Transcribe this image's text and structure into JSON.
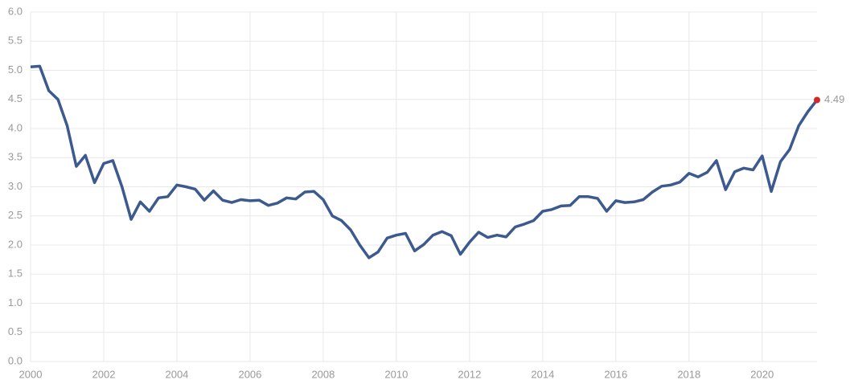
{
  "chart_data": {
    "type": "line",
    "x": [
      2000,
      2000.25,
      2000.5,
      2000.75,
      2001,
      2001.25,
      2001.5,
      2001.75,
      2002,
      2002.25,
      2002.5,
      2002.75,
      2003,
      2003.25,
      2003.5,
      2003.75,
      2004,
      2004.25,
      2004.5,
      2004.75,
      2005,
      2005.25,
      2005.5,
      2005.75,
      2006,
      2006.25,
      2006.5,
      2006.75,
      2007,
      2007.25,
      2007.5,
      2007.75,
      2008,
      2008.25,
      2008.5,
      2008.75,
      2009,
      2009.25,
      2009.5,
      2009.75,
      2010,
      2010.25,
      2010.5,
      2010.75,
      2011,
      2011.25,
      2011.5,
      2011.75,
      2012,
      2012.25,
      2012.5,
      2012.75,
      2013,
      2013.25,
      2013.5,
      2013.75,
      2014,
      2014.25,
      2014.5,
      2014.75,
      2015,
      2015.25,
      2015.5,
      2015.75,
      2016,
      2016.25,
      2016.5,
      2016.75,
      2017,
      2017.25,
      2017.5,
      2017.75,
      2018,
      2018.25,
      2018.5,
      2018.75,
      2019,
      2019.25,
      2019.5,
      2019.75,
      2020,
      2020.25,
      2020.5,
      2020.75,
      2021,
      2021.25,
      2021.5
    ],
    "series": [
      {
        "color": "#3d5a8e",
        "highlight_color": "#d62728",
        "values": [
          5.06,
          5.07,
          4.65,
          4.5,
          4.05,
          3.35,
          3.54,
          3.07,
          3.4,
          3.45,
          3.0,
          2.44,
          2.74,
          2.58,
          2.81,
          2.83,
          3.03,
          3.0,
          2.96,
          2.77,
          2.93,
          2.77,
          2.73,
          2.78,
          2.76,
          2.77,
          2.68,
          2.72,
          2.81,
          2.79,
          2.91,
          2.92,
          2.78,
          2.5,
          2.42,
          2.26,
          2.0,
          1.78,
          1.88,
          2.12,
          2.17,
          2.2,
          1.9,
          2.01,
          2.17,
          2.23,
          2.16,
          1.84,
          2.05,
          2.22,
          2.13,
          2.17,
          2.14,
          2.31,
          2.36,
          2.42,
          2.58,
          2.61,
          2.67,
          2.68,
          2.83,
          2.83,
          2.8,
          2.58,
          2.76,
          2.73,
          2.74,
          2.78,
          2.91,
          3.01,
          3.03,
          3.08,
          3.23,
          3.17,
          3.25,
          3.45,
          2.95,
          3.26,
          3.32,
          3.29,
          3.53,
          2.92,
          3.43,
          3.64,
          4.05,
          4.29,
          4.49
        ]
      }
    ],
    "xlim": [
      2000,
      2021.5
    ],
    "xticks": [
      2000,
      2002,
      2004,
      2006,
      2008,
      2010,
      2012,
      2014,
      2016,
      2018,
      2020
    ],
    "ylim": [
      0,
      6
    ],
    "yticks": [
      {
        "value": 0,
        "label": "0.0"
      },
      {
        "value": 0.5,
        "label": "0.5"
      },
      {
        "value": 1,
        "label": "1.0"
      },
      {
        "value": 1.5,
        "label": "1.5"
      },
      {
        "value": 2,
        "label": "2.0"
      },
      {
        "value": 2.5,
        "label": "2.5"
      },
      {
        "value": 3,
        "label": "3.0"
      },
      {
        "value": 3.5,
        "label": "3.5"
      },
      {
        "value": 4,
        "label": "4.0"
      },
      {
        "value": 4.5,
        "label": "4.5"
      },
      {
        "value": 5,
        "label": "5.0"
      },
      {
        "value": 5.5,
        "label": "5.5"
      },
      {
        "value": 6,
        "label": "6.0"
      }
    ],
    "grid": true
  }
}
